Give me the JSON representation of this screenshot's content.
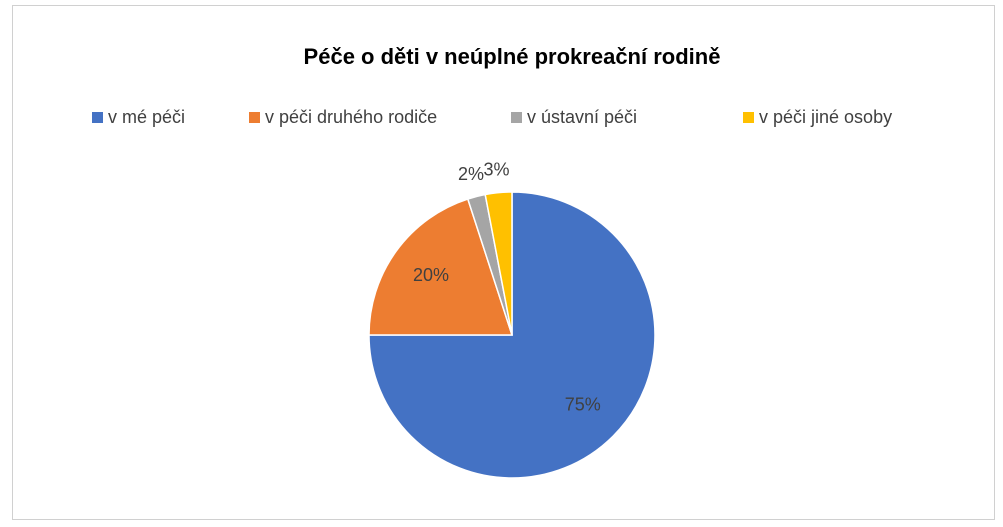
{
  "chart_data": {
    "type": "pie",
    "title": "Péče o děti v neúplné prokreační rodině",
    "categories": [
      "v mé péči",
      "v péči druhého rodiče",
      "v ústavní péči",
      "v péči jiné osoby"
    ],
    "values": [
      75,
      20,
      2,
      3
    ],
    "value_labels": [
      "75%",
      "20%",
      "2%",
      "3%"
    ],
    "colors": [
      "#4472c4",
      "#ed7d31",
      "#a5a5a5",
      "#ffc000"
    ]
  }
}
